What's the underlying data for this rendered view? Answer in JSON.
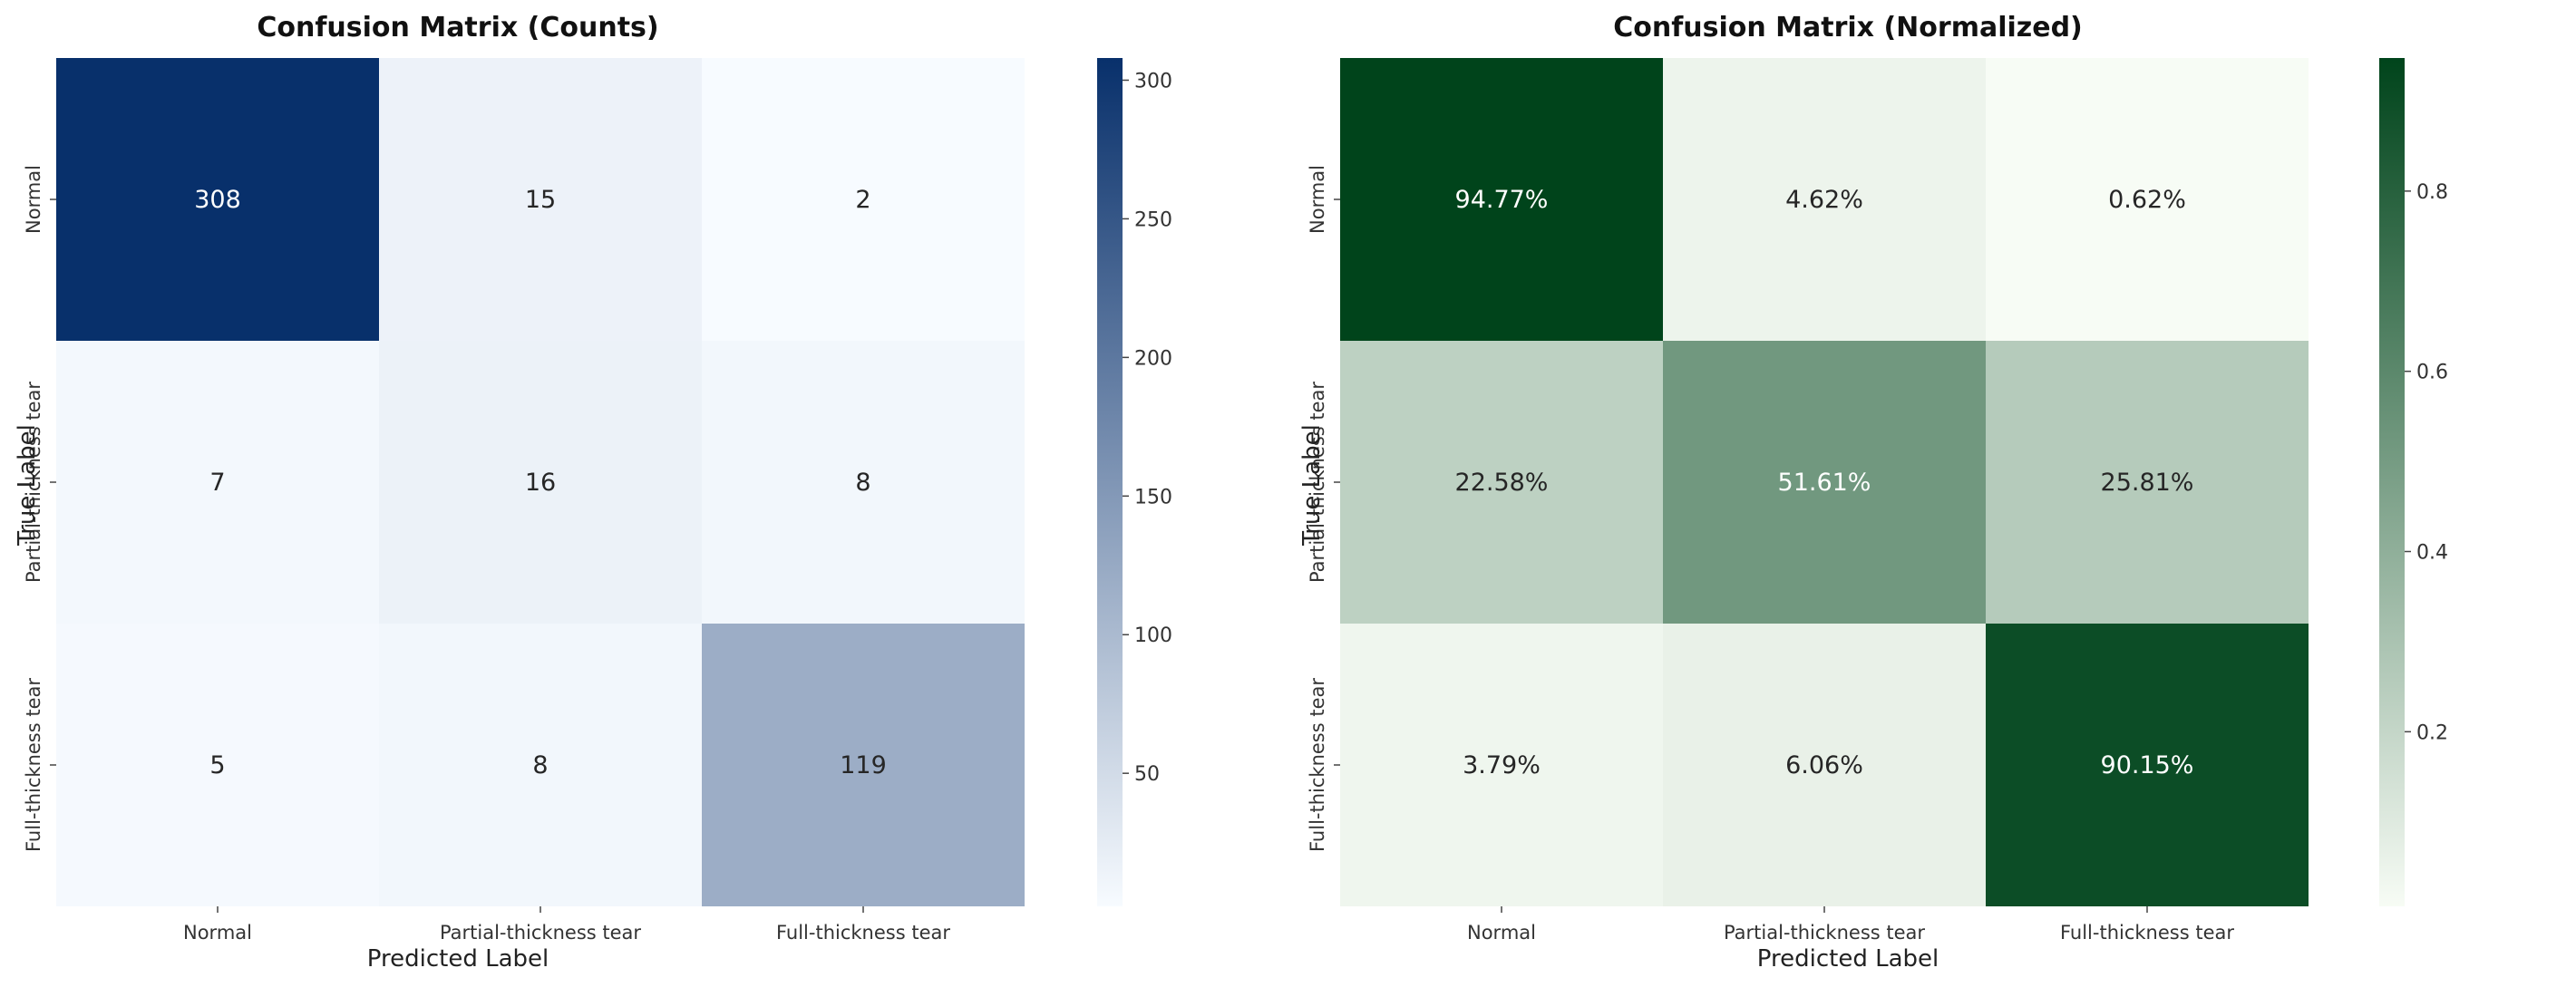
{
  "chart_data": [
    {
      "type": "heatmap",
      "title": "Confusion Matrix (Counts)",
      "xlabel": "Predicted Label",
      "ylabel": "True Label",
      "x_categories": [
        "Normal",
        "Partial-thickness tear",
        "Full-thickness tear"
      ],
      "y_categories": [
        "Normal",
        "Partial-thickness tear",
        "Full-thickness tear"
      ],
      "values": [
        [
          308,
          15,
          2
        ],
        [
          7,
          16,
          8
        ],
        [
          5,
          8,
          119
        ]
      ],
      "cell_labels": [
        [
          "308",
          "15",
          "2"
        ],
        [
          "7",
          "16",
          "8"
        ],
        [
          "5",
          "8",
          "119"
        ]
      ],
      "colorscale": "Blues",
      "color_low": "#f7fbff",
      "color_high": "#08306b",
      "vmin": 2,
      "vmax": 308,
      "colorbar_ticks": [
        50,
        100,
        150,
        200,
        250,
        300
      ]
    },
    {
      "type": "heatmap",
      "title": "Confusion Matrix (Normalized)",
      "xlabel": "Predicted Label",
      "ylabel": "True Label",
      "x_categories": [
        "Normal",
        "Partial-thickness tear",
        "Full-thickness tear"
      ],
      "y_categories": [
        "Normal",
        "Partial-thickness tear",
        "Full-thickness tear"
      ],
      "values": [
        [
          0.9477,
          0.0462,
          0.0062
        ],
        [
          0.2258,
          0.5161,
          0.2581
        ],
        [
          0.0379,
          0.0606,
          0.9015
        ]
      ],
      "cell_labels": [
        [
          "94.77%",
          "4.62%",
          "0.62%"
        ],
        [
          "22.58%",
          "51.61%",
          "25.81%"
        ],
        [
          "3.79%",
          "6.06%",
          "90.15%"
        ]
      ],
      "colorscale": "Greens",
      "color_low": "#f7fcf5",
      "color_high": "#00441b",
      "vmin": 0.0062,
      "vmax": 0.9477,
      "colorbar_ticks": [
        0.2,
        0.4,
        0.6,
        0.8
      ]
    }
  ]
}
